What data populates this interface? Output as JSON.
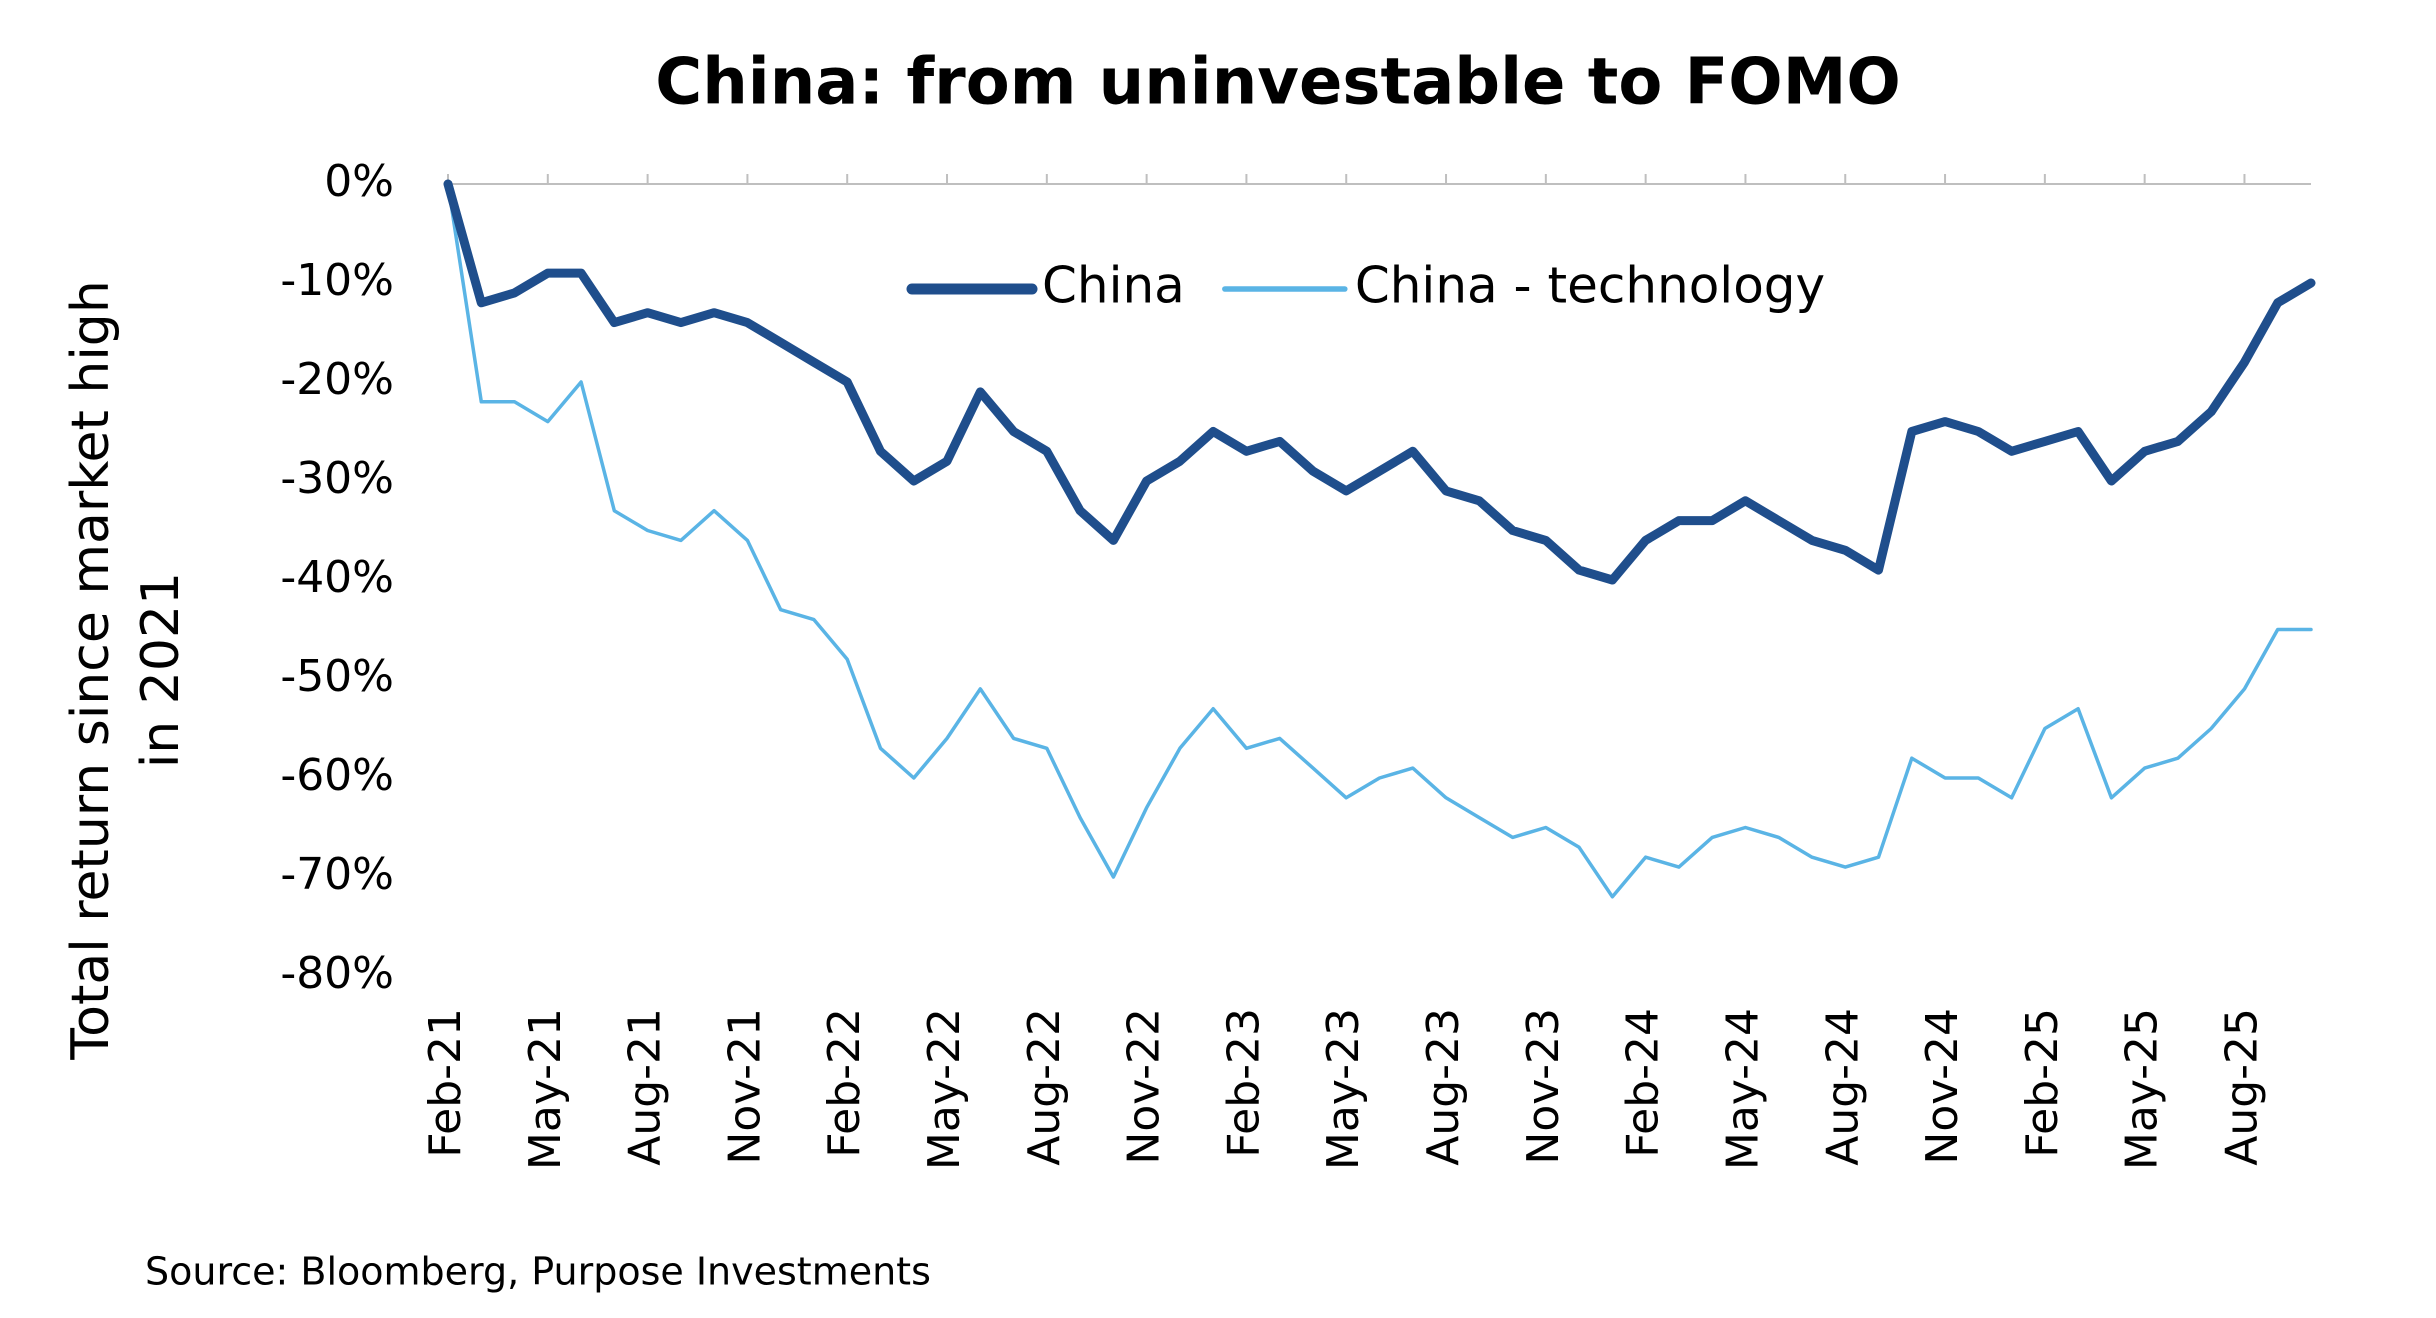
{
  "chart_data": {
    "type": "line",
    "title": "China: from uninvestable to FOMO",
    "ylabel": [
      "Total return since market high",
      "in 2021"
    ],
    "source": "Source: Bloomberg, Purpose Investments",
    "categories": [
      "Feb-21",
      null,
      null,
      "May-21",
      null,
      null,
      "Aug-21",
      null,
      null,
      "Nov-21",
      null,
      null,
      "Feb-22",
      null,
      null,
      "May-22",
      null,
      null,
      "Aug-22",
      null,
      null,
      "Nov-22",
      null,
      null,
      "Feb-23",
      null,
      null,
      "May-23",
      null,
      null,
      "Aug-23",
      null,
      null,
      "Nov-23",
      null,
      null,
      "Feb-24",
      null,
      null,
      "May-24",
      null,
      null,
      "Aug-24",
      null,
      null,
      "Nov-24",
      null,
      null,
      "Feb-25",
      null,
      null,
      "May-25",
      null,
      null,
      "Aug-25",
      null,
      null
    ],
    "series": [
      {
        "name": "China",
        "color": "#1f4e8c",
        "width": 9,
        "values": [
          0,
          -12,
          -11,
          -9,
          -9,
          -14,
          -13,
          -14,
          -13,
          -14,
          -16,
          -18,
          -20,
          -27,
          -30,
          -28,
          -21,
          -25,
          -27,
          -33,
          -36,
          -30,
          -28,
          -25,
          -27,
          -26,
          -29,
          -31,
          -29,
          -27,
          -31,
          -32,
          -35,
          -36,
          -39,
          -40,
          -36,
          -34,
          -34,
          -32,
          -34,
          -36,
          -37,
          -39,
          -25,
          -24,
          -25,
          -27,
          -26,
          -25,
          -30,
          -27,
          -26,
          -23,
          -18,
          -12,
          -10
        ]
      },
      {
        "name": "China - technology",
        "color": "#5ab4e5",
        "width": 3.5,
        "values": [
          0,
          -22,
          -22,
          -24,
          -20,
          -33,
          -35,
          -36,
          -33,
          -36,
          -43,
          -44,
          -48,
          -57,
          -60,
          -56,
          -51,
          -56,
          -57,
          -64,
          -70,
          -63,
          -57,
          -53,
          -57,
          -56,
          -59,
          -62,
          -60,
          -59,
          -62,
          -64,
          -66,
          -65,
          -67,
          -72,
          -68,
          -69,
          -66,
          -65,
          -66,
          -68,
          -69,
          -68,
          -58,
          -60,
          -60,
          -62,
          -55,
          -53,
          -62,
          -59,
          -58,
          -55,
          -51,
          -45,
          -45
        ]
      }
    ],
    "ylim": [
      -80,
      0
    ],
    "yticks": [
      {
        "value": 0,
        "label": "0%"
      },
      {
        "value": -10,
        "label": "-10%"
      },
      {
        "value": -20,
        "label": "-20%"
      },
      {
        "value": -30,
        "label": "-30%"
      },
      {
        "value": -40,
        "label": "-40%"
      },
      {
        "value": -50,
        "label": "-50%"
      },
      {
        "value": -60,
        "label": "-60%"
      },
      {
        "value": -70,
        "label": "-70%"
      },
      {
        "value": -80,
        "label": "-80%"
      }
    ],
    "legend": "top"
  }
}
